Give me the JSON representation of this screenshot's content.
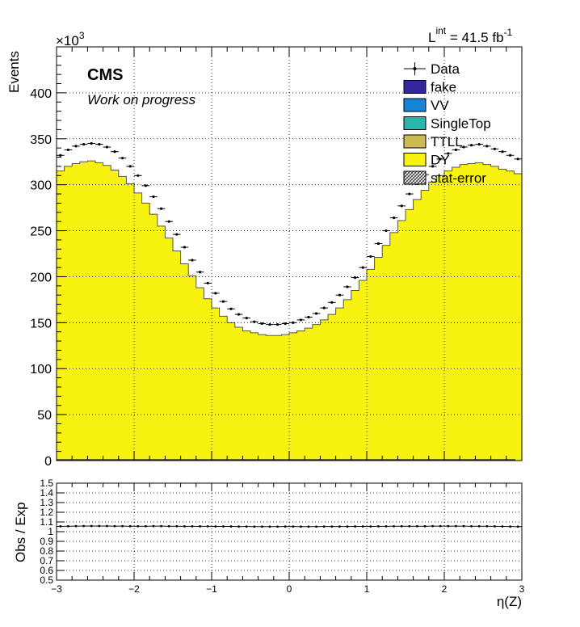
{
  "lumi": {
    "prefix": "L",
    "superscript": "int",
    "value": " = 41.5 fb",
    "unit_exp": "-1"
  },
  "cms_label": "CMS",
  "work_label": "Work on progress",
  "exponent": {
    "base": "×10",
    "power": "3"
  },
  "colors": {
    "DY": "#f7f20f",
    "TTLL": "#cdb955",
    "SingleTop": "#2bb5aa",
    "VV": "#1585d8",
    "fake": "#33259c",
    "data": "#000000"
  },
  "legend": [
    {
      "label": "Data",
      "kind": "data"
    },
    {
      "label": "fake",
      "kind": "fill",
      "color_key": "fake"
    },
    {
      "label": "VV",
      "kind": "fill",
      "color_key": "VV"
    },
    {
      "label": "SingleTop",
      "kind": "fill",
      "color_key": "SingleTop"
    },
    {
      "label": "TTLL",
      "kind": "fill",
      "color_key": "TTLL"
    },
    {
      "label": "DY",
      "kind": "fill",
      "color_key": "DY"
    },
    {
      "label": "stat-error",
      "kind": "hatch"
    }
  ],
  "chart_data": [
    {
      "type": "area",
      "ylabel": "Events",
      "xlim": [
        -3,
        3
      ],
      "ylim": [
        0,
        450
      ],
      "yticks": [
        0,
        50,
        100,
        150,
        200,
        250,
        300,
        350,
        400
      ],
      "grid": true,
      "legend_position": "top-right",
      "bin_edges": [
        -3.0,
        -2.9,
        -2.8,
        -2.7,
        -2.6,
        -2.5,
        -2.4,
        -2.3,
        -2.2,
        -2.1,
        -2.0,
        -1.9,
        -1.8,
        -1.7,
        -1.6,
        -1.5,
        -1.4,
        -1.3,
        -1.2,
        -1.1,
        -1.0,
        -0.9,
        -0.8,
        -0.7,
        -0.6,
        -0.5,
        -0.4,
        -0.3,
        -0.2,
        -0.1,
        0.0,
        0.1,
        0.2,
        0.3,
        0.4,
        0.5,
        0.6,
        0.7,
        0.8,
        0.9,
        1.0,
        1.1,
        1.2,
        1.3,
        1.4,
        1.5,
        1.6,
        1.7,
        1.8,
        1.9,
        2.0,
        2.1,
        2.2,
        2.3,
        2.4,
        2.5,
        2.6,
        2.7,
        2.8,
        2.9,
        3.0
      ],
      "series": [
        {
          "name": "DY",
          "kind": "stack",
          "values": [
            315,
            320,
            323,
            325,
            326,
            324,
            321,
            316,
            309,
            301,
            291,
            280,
            268,
            255,
            242,
            228,
            214,
            201,
            188,
            176,
            166,
            157,
            150,
            145,
            141,
            139,
            137,
            136,
            136,
            137,
            139,
            141,
            144,
            148,
            153,
            159,
            166,
            175,
            185,
            196,
            208,
            221,
            234,
            248,
            261,
            273,
            284,
            294,
            303,
            310,
            315,
            319,
            322,
            323,
            324,
            322,
            320,
            317,
            315,
            312
          ],
          "note_unit": "x10^3"
        },
        {
          "name": "Data",
          "kind": "points",
          "values": [
            332,
            338,
            342,
            344,
            345,
            344,
            341,
            336,
            329,
            320,
            310,
            299,
            287,
            274,
            260,
            246,
            232,
            218,
            205,
            193,
            182,
            173,
            165,
            159,
            155,
            151,
            149,
            148,
            148,
            149,
            150,
            153,
            156,
            160,
            166,
            172,
            180,
            189,
            199,
            210,
            222,
            236,
            250,
            264,
            277,
            290,
            301,
            311,
            320,
            328,
            334,
            338,
            341,
            343,
            344,
            342,
            339,
            336,
            332,
            328
          ]
        }
      ]
    },
    {
      "type": "scatter",
      "xlabel": "η(Z)",
      "ylabel": "Obs / Exp",
      "xlim": [
        -3,
        3
      ],
      "ylim": [
        0.5,
        1.5
      ],
      "xticks": [
        -3,
        -2,
        -1,
        0,
        1,
        2,
        3
      ],
      "yticks": [
        "0.5",
        "0.6",
        "0.7",
        "0.8",
        "0.9",
        "1",
        "1.1",
        "1.2",
        "1.3",
        "1.4",
        "1.5"
      ],
      "grid": true,
      "ratio": [
        1.055,
        1.056,
        1.057,
        1.058,
        1.058,
        1.058,
        1.058,
        1.057,
        1.057,
        1.056,
        1.056,
        1.056,
        1.057,
        1.057,
        1.056,
        1.056,
        1.055,
        1.055,
        1.055,
        1.055,
        1.054,
        1.054,
        1.054,
        1.053,
        1.053,
        1.052,
        1.052,
        1.052,
        1.052,
        1.053,
        1.053,
        1.052,
        1.052,
        1.052,
        1.053,
        1.053,
        1.053,
        1.053,
        1.054,
        1.054,
        1.054,
        1.055,
        1.055,
        1.056,
        1.056,
        1.056,
        1.056,
        1.056,
        1.057,
        1.057,
        1.057,
        1.057,
        1.057,
        1.056,
        1.056,
        1.056,
        1.055,
        1.054,
        1.053,
        1.052
      ]
    }
  ]
}
